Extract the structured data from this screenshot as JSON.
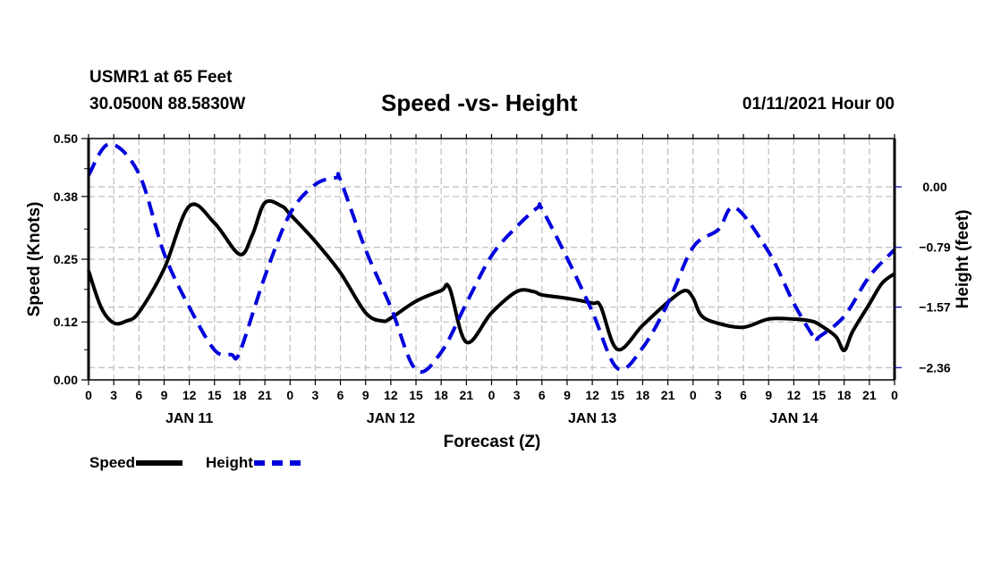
{
  "header": {
    "station": "USMR1 at 65 Feet",
    "coords": "30.0500N 88.5830W",
    "title": "Speed -vs- Height",
    "datetime": "01/11/2021 Hour 00"
  },
  "legend": {
    "speed_label": "Speed",
    "height_label": "Height"
  },
  "chart_data": {
    "type": "line",
    "title": "Speed -vs- Height",
    "xlabel": "Forecast (Z)",
    "ylabel_left": "Speed (Knots)",
    "ylabel_right": "Height (feet)",
    "x_unit": "hours from 01/11/2021 00Z",
    "xlim": [
      0,
      96
    ],
    "x_ticks": [
      0,
      3,
      6,
      9,
      12,
      15,
      18,
      21,
      24,
      27,
      30,
      33,
      36,
      39,
      42,
      45,
      48,
      51,
      54,
      57,
      60,
      63,
      66,
      69,
      72,
      75,
      78,
      81,
      84,
      87,
      90,
      93,
      96
    ],
    "x_tick_labels": [
      "0",
      "3",
      "6",
      "9",
      "12",
      "15",
      "18",
      "21",
      "0",
      "3",
      "6",
      "9",
      "12",
      "15",
      "18",
      "21",
      "0",
      "3",
      "6",
      "9",
      "12",
      "15",
      "18",
      "21",
      "0",
      "3",
      "6",
      "9",
      "12",
      "15",
      "18",
      "21",
      "0"
    ],
    "day_labels": [
      {
        "label": "JAN 11",
        "center_hour": 12
      },
      {
        "label": "JAN 12",
        "center_hour": 36
      },
      {
        "label": "JAN 13",
        "center_hour": 60
      },
      {
        "label": "JAN 14",
        "center_hour": 84
      }
    ],
    "ylim_left": [
      0,
      0.5
    ],
    "y_ticks_left": [
      0.0,
      0.12,
      0.25,
      0.38,
      0.5
    ],
    "y_tick_labels_left": [
      "0.00",
      "0.12",
      "0.25",
      "0.38",
      "0.50"
    ],
    "ylim_right": [
      -2.52,
      0.63
    ],
    "y_ticks_right": [
      0.0,
      -0.79,
      -1.57,
      -2.36
    ],
    "y_tick_labels_right": [
      "0.00",
      "-0.79",
      "-1.57",
      "-2.36"
    ],
    "grid": true,
    "legend_position": "bottom-left",
    "series": [
      {
        "name": "Speed",
        "axis": "left",
        "color": "#000000",
        "style": "solid",
        "x": [
          0,
          1.5,
          3,
          4.5,
          6,
          9,
          12,
          15,
          18,
          19.5,
          21,
          23,
          24,
          27,
          30,
          33,
          35,
          36,
          39,
          42,
          43,
          45,
          48,
          51,
          53,
          54,
          57,
          60,
          61,
          63,
          66,
          69,
          71,
          72,
          73,
          75,
          78,
          81,
          84,
          86,
          87,
          89,
          90,
          91,
          93,
          94.5,
          96
        ],
        "values": [
          0.226,
          0.15,
          0.118,
          0.122,
          0.14,
          0.23,
          0.36,
          0.325,
          0.26,
          0.3,
          0.367,
          0.36,
          0.343,
          0.287,
          0.222,
          0.139,
          0.122,
          0.128,
          0.163,
          0.185,
          0.19,
          0.078,
          0.139,
          0.183,
          0.183,
          0.176,
          0.169,
          0.159,
          0.152,
          0.063,
          0.113,
          0.161,
          0.185,
          0.17,
          0.133,
          0.117,
          0.109,
          0.126,
          0.126,
          0.122,
          0.115,
          0.09,
          0.061,
          0.1,
          0.157,
          0.2,
          0.22
        ]
      },
      {
        "name": "Height",
        "axis": "right",
        "color": "#0000dd",
        "style": "dashed",
        "x": [
          0,
          2.5,
          6,
          9,
          12,
          15,
          17,
          18,
          21,
          24,
          27,
          29.5,
          30,
          33,
          36,
          39,
          42,
          45,
          48,
          51,
          53.5,
          54,
          57,
          60,
          63,
          66,
          69,
          72,
          75,
          77,
          81,
          84,
          86.5,
          87,
          90,
          93,
          96
        ],
        "values": [
          0.15,
          0.56,
          0.17,
          -0.87,
          -1.57,
          -2.13,
          -2.19,
          -2.16,
          -1.17,
          -0.35,
          0.03,
          0.12,
          0.09,
          -0.82,
          -1.57,
          -2.39,
          -2.16,
          -1.52,
          -0.9,
          -0.52,
          -0.27,
          -0.29,
          -0.93,
          -1.63,
          -2.37,
          -2.1,
          -1.52,
          -0.79,
          -0.56,
          -0.27,
          -0.85,
          -1.52,
          -1.98,
          -1.96,
          -1.69,
          -1.17,
          -0.82
        ]
      }
    ]
  }
}
